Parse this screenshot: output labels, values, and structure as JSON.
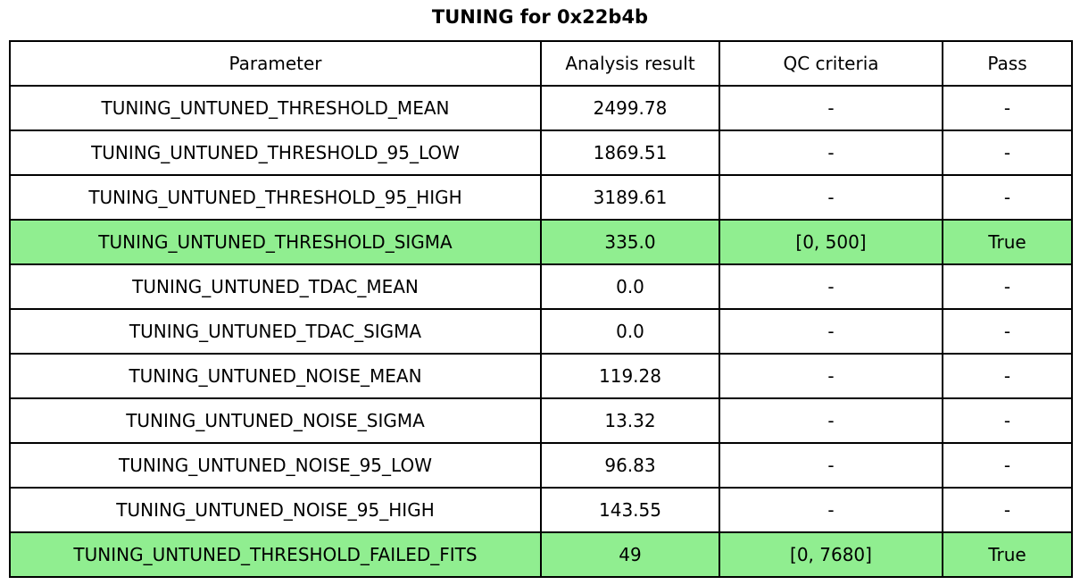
{
  "page": {
    "title": "TUNING for 0x22b4b"
  },
  "colors": {
    "highlight_green": "#90ee90",
    "border": "#000000",
    "text": "#000000",
    "row_background": "#ffffff"
  },
  "table": {
    "columns": [
      "Parameter",
      "Analysis result",
      "QC criteria",
      "Pass"
    ],
    "rows": [
      {
        "parameter": "TUNING_UNTUNED_THRESHOLD_MEAN",
        "analysis_result": "2499.78",
        "qc_criteria": "-",
        "pass": "-",
        "highlighted": false
      },
      {
        "parameter": "TUNING_UNTUNED_THRESHOLD_95_LOW",
        "analysis_result": "1869.51",
        "qc_criteria": "-",
        "pass": "-",
        "highlighted": false
      },
      {
        "parameter": "TUNING_UNTUNED_THRESHOLD_95_HIGH",
        "analysis_result": "3189.61",
        "qc_criteria": "-",
        "pass": "-",
        "highlighted": false
      },
      {
        "parameter": "TUNING_UNTUNED_THRESHOLD_SIGMA",
        "analysis_result": "335.0",
        "qc_criteria": "[0, 500]",
        "pass": "True",
        "highlighted": true
      },
      {
        "parameter": "TUNING_UNTUNED_TDAC_MEAN",
        "analysis_result": "0.0",
        "qc_criteria": "-",
        "pass": "-",
        "highlighted": false
      },
      {
        "parameter": "TUNING_UNTUNED_TDAC_SIGMA",
        "analysis_result": "0.0",
        "qc_criteria": "-",
        "pass": "-",
        "highlighted": false
      },
      {
        "parameter": "TUNING_UNTUNED_NOISE_MEAN",
        "analysis_result": "119.28",
        "qc_criteria": "-",
        "pass": "-",
        "highlighted": false
      },
      {
        "parameter": "TUNING_UNTUNED_NOISE_SIGMA",
        "analysis_result": "13.32",
        "qc_criteria": "-",
        "pass": "-",
        "highlighted": false
      },
      {
        "parameter": "TUNING_UNTUNED_NOISE_95_LOW",
        "analysis_result": "96.83",
        "qc_criteria": "-",
        "pass": "-",
        "highlighted": false
      },
      {
        "parameter": "TUNING_UNTUNED_NOISE_95_HIGH",
        "analysis_result": "143.55",
        "qc_criteria": "-",
        "pass": "-",
        "highlighted": false
      },
      {
        "parameter": "TUNING_UNTUNED_THRESHOLD_FAILED_FITS",
        "analysis_result": "49",
        "qc_criteria": "[0, 7680]",
        "pass": "True",
        "highlighted": true
      }
    ]
  },
  "chart_data": {
    "type": "table",
    "title": "TUNING for 0x22b4b",
    "columns": [
      "Parameter",
      "Analysis result",
      "QC criteria",
      "Pass"
    ],
    "rows": [
      [
        "TUNING_UNTUNED_THRESHOLD_MEAN",
        "2499.78",
        "-",
        "-"
      ],
      [
        "TUNING_UNTUNED_THRESHOLD_95_LOW",
        "1869.51",
        "-",
        "-"
      ],
      [
        "TUNING_UNTUNED_THRESHOLD_95_HIGH",
        "3189.61",
        "-",
        "-"
      ],
      [
        "TUNING_UNTUNED_THRESHOLD_SIGMA",
        "335.0",
        "[0, 500]",
        "True"
      ],
      [
        "TUNING_UNTUNED_TDAC_MEAN",
        "0.0",
        "-",
        "-"
      ],
      [
        "TUNING_UNTUNED_TDAC_SIGMA",
        "0.0",
        "-",
        "-"
      ],
      [
        "TUNING_UNTUNED_NOISE_MEAN",
        "119.28",
        "-",
        "-"
      ],
      [
        "TUNING_UNTUNED_NOISE_SIGMA",
        "13.32",
        "-",
        "-"
      ],
      [
        "TUNING_UNTUNED_NOISE_95_LOW",
        "96.83",
        "-",
        "-"
      ],
      [
        "TUNING_UNTUNED_NOISE_95_HIGH",
        "143.55",
        "-",
        "-"
      ],
      [
        "TUNING_UNTUNED_THRESHOLD_FAILED_FITS",
        "49",
        "[0, 7680]",
        "True"
      ]
    ],
    "highlighted_row_indices": [
      3,
      10
    ],
    "highlight_color": "#90ee90",
    "layout": {
      "title_position": "top-center",
      "cell_text_align": "center",
      "grid": "all-borders"
    }
  }
}
